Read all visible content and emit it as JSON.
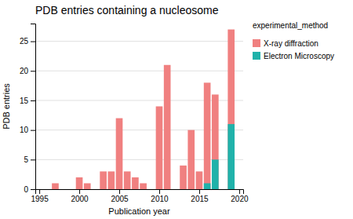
{
  "chart_data": {
    "type": "bar",
    "title": "PDB entries containing a nucleosome",
    "x_label": "Publication year",
    "y_label": "PDB entries",
    "legend_title": "experimental_method",
    "series": [
      {
        "name": "X-ray diffraction",
        "color": "#F08080",
        "x": [
          1997,
          1998,
          1999,
          2000,
          2001,
          2002,
          2003,
          2004,
          2005,
          2006,
          2007,
          2008,
          2009,
          2010,
          2011,
          2012,
          2013,
          2014,
          2015,
          2016,
          2017,
          2018,
          2019
        ],
        "values": [
          1,
          0,
          0,
          2,
          1,
          0,
          3,
          3,
          12,
          3,
          2,
          1,
          0,
          14,
          21,
          0,
          4,
          10,
          3,
          18,
          16,
          0,
          27
        ]
      },
      {
        "name": "Electron Microscopy",
        "color": "#20B2AA",
        "x": [
          2016,
          2017,
          2019
        ],
        "values": [
          1,
          5,
          11
        ]
      }
    ],
    "xlim": [
      1994.5,
      2020.5
    ],
    "xticks": [
      1995,
      2000,
      2005,
      2010,
      2015,
      2020
    ],
    "ylim": [
      0,
      28
    ],
    "yticks": [
      0,
      5,
      10,
      15,
      20,
      25
    ],
    "grid": true,
    "legend": "right"
  }
}
